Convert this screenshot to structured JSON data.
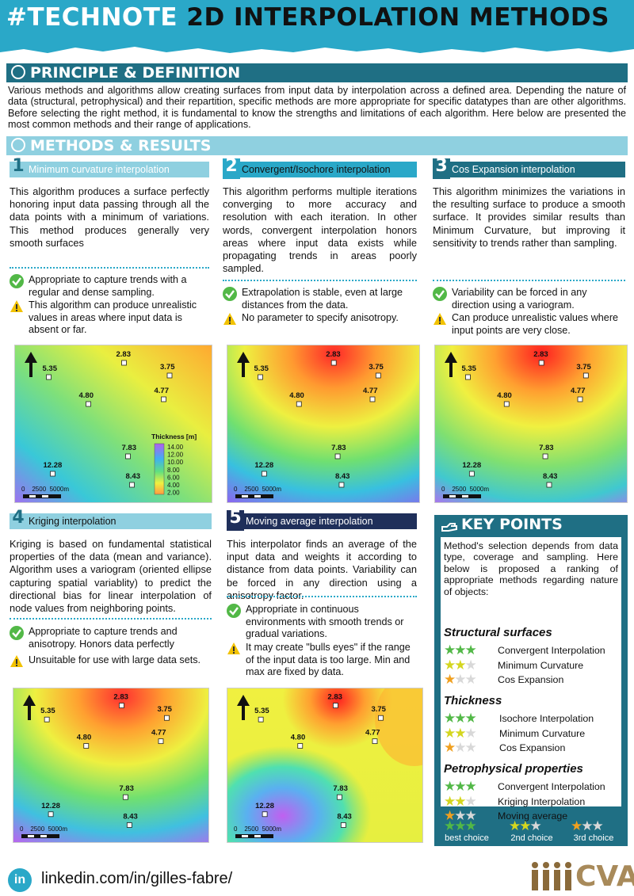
{
  "header": {
    "title_part1": "#TECHNOTE",
    "title_part2": "2D INTERPOLATION METHODS"
  },
  "principle": {
    "title": "PRINCIPLE & DEFINITION",
    "text": "Various methods and algorithms allow creating surfaces from input data by interpolation across a defined area. Depending the nature of data (structural, petrophysical) and their repartition, specific methods are more appropriate for specific datatypes than are other algorithms. Before selecting the right method, it is fundamental to know the strengths and limitations of each algorithm. Here below are presented the most common methods and their range of applications."
  },
  "methods_title": "METHODS & RESULTS",
  "methods": [
    {
      "num": "1",
      "title": "Minimum curvature interpolation",
      "text": "This algorithm produces a surface perfectly honoring input data passing through all the data points with a minimum of variations. This method produces generally very smooth surfaces",
      "pro": "Appropriate to capture trends with a regular and dense sampling.",
      "con": "This algorithm can produce unrealistic values in areas where input data is absent or far."
    },
    {
      "num": "2",
      "title": "Convergent/Isochore interpolation",
      "text": "This algorithm performs multiple iterations converging to more accuracy and resolution with each iteration. In other words, convergent interpolation honors areas where input data exists while propagating trends in areas poorly sampled.",
      "pro": "Extrapolation is stable, even at large distances from the data.",
      "con": "No parameter to specify anisotropy."
    },
    {
      "num": "3",
      "title": "Cos Expansion interpolation",
      "text": "This algorithm minimizes the variations in the resulting surface to produce a smooth surface. It provides similar results than Minimum Curvature, but improving it sensitivity to trends rather than sampling.",
      "pro": "Variability can be forced in any direction using a variogram.",
      "con": "Can produce unrealistic values where input points are very close."
    },
    {
      "num": "4",
      "title": "Kriging interpolation",
      "text": "Kriging is based on fundamental statistical properties of the data (mean and variance). Algorithm uses a variogram (oriented ellipse capturing spatial variablity) to predict the directional bias for linear interpolation of node values from neighboring points.",
      "pro": "Appropriate to capture trends and anisotropy. Honors data perfectly",
      "con": "Unsuitable for use with large data sets."
    },
    {
      "num": "5",
      "title": "Moving average interpolation",
      "text": "This interpolator finds an average of the input data and weights it according to distance from data points. Variability can be forced in any direction using a anisotropy factor.",
      "pro": "Appropriate in continuous environments with smooth trends or gradual variations.",
      "con": "It may create \"bulls eyes\" if the range of the input data is too large. Min and max are fixed by data."
    }
  ],
  "map_points": [
    {
      "label": "5.35"
    },
    {
      "label": "2.83"
    },
    {
      "label": "3.75"
    },
    {
      "label": "4.80"
    },
    {
      "label": "4.77"
    },
    {
      "label": "7.83"
    },
    {
      "label": "12.28"
    },
    {
      "label": "8.43"
    }
  ],
  "scale_label": "0    2500  5000m",
  "legend": {
    "title": "Thickness [m]",
    "ticks": [
      "14.00",
      "12.00",
      "10.00",
      "8.00",
      "6.00",
      "4.00",
      "2.00"
    ]
  },
  "key_points": {
    "title": "KEY POINTS",
    "intro": "Method's selection depends from data type, coverage and sampling. Here below is proposed a ranking of appropriate methods regarding nature of objects:",
    "categories": [
      {
        "name": "Structural surfaces",
        "items": [
          "Convergent Interpolation",
          "Minimum Curvature",
          "Cos Expansion"
        ]
      },
      {
        "name": "Thickness",
        "items": [
          "Isochore Interpolation",
          "Minimum Curvature",
          "Cos Expansion"
        ]
      },
      {
        "name": "Petrophysical properties",
        "items": [
          "Convergent Interpolation",
          "Kriging Interpolation",
          "Moving average"
        ]
      }
    ],
    "legend": [
      "best choice",
      "2nd choice",
      "3rd choice"
    ]
  },
  "footer": {
    "link": "linkedin.com/in/gilles-fabre/",
    "brand": "CVA"
  },
  "colors": {
    "primary": "#1f6f84",
    "accent": "#2aa8c8",
    "light": "#8fd0e0"
  }
}
